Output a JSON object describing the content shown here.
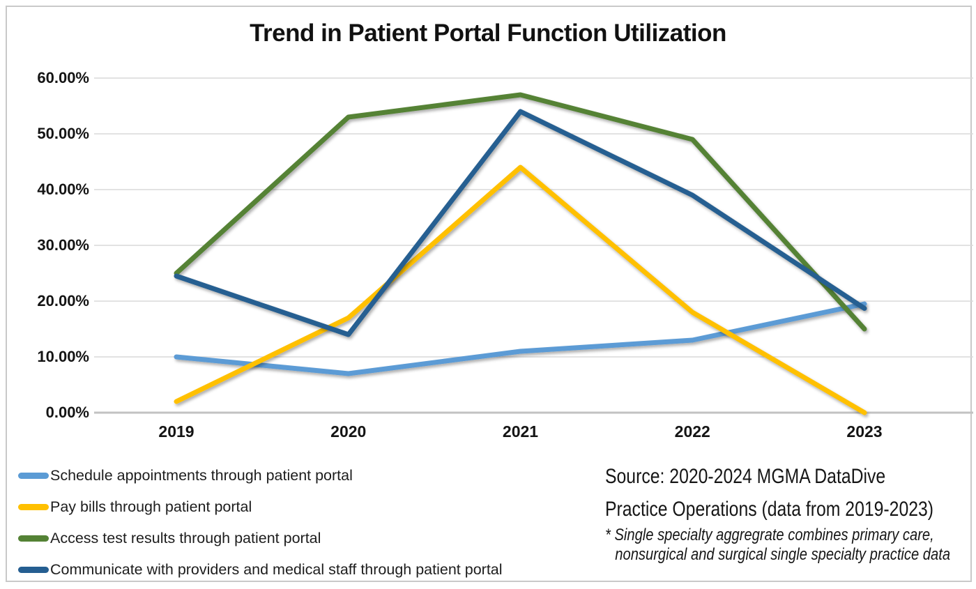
{
  "chart_data": {
    "type": "line",
    "title": "Trend in Patient Portal Function Utilization",
    "categories": [
      "2019",
      "2020",
      "2021",
      "2022",
      "2023"
    ],
    "y_ticks": [
      "60.00%",
      "50.00%",
      "40.00%",
      "30.00%",
      "20.00%",
      "10.00%",
      "0.00%"
    ],
    "ylim": [
      0,
      60
    ],
    "grid": true,
    "legend_position": "bottom-left",
    "series": [
      {
        "name": "Schedule appointments through patient portal",
        "color": "#5B9BD5",
        "values": [
          10,
          7,
          11,
          13,
          19.5
        ]
      },
      {
        "name": "Pay bills through patient portal",
        "color": "#FFC000",
        "values": [
          2,
          17,
          44,
          18,
          0
        ]
      },
      {
        "name": "Access test results through patient portal",
        "color": "#548235",
        "values": [
          25,
          53,
          57,
          49,
          15
        ]
      },
      {
        "name": "Communicate with providers and medical staff through patient portal",
        "color": "#255E91",
        "values": [
          24.5,
          14,
          54,
          39,
          18.7
        ]
      }
    ]
  },
  "source": {
    "line1": "Source: 2020-2024 MGMA DataDive",
    "line2": "Practice Operations (data from 2019-2023)",
    "note_line1": "* Single specialty aggregrate combines primary care,",
    "note_line2": "nonsurgical and surgical single specialty practice data"
  },
  "colors": {
    "gridline": "#d9d9d9",
    "axis_line": "#c2c2c2",
    "frame_border": "#c9c9c9",
    "text": "#1a1a1a"
  }
}
